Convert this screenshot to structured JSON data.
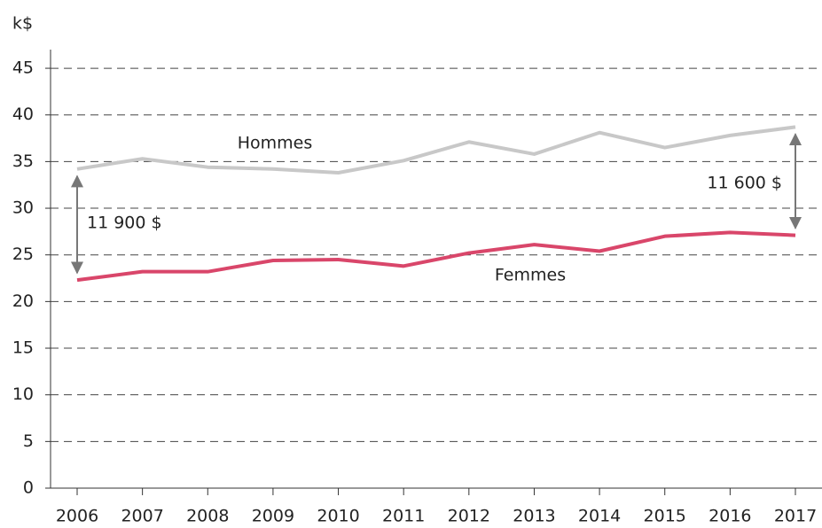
{
  "chart_data": {
    "type": "line",
    "y_label": "k$",
    "categories": [
      "2006",
      "2007",
      "2008",
      "2009",
      "2010",
      "2011",
      "2012",
      "2013",
      "2014",
      "2015",
      "2016",
      "2017"
    ],
    "series": [
      {
        "name": "Hommes",
        "color": "#c8c8c8",
        "values": [
          34.2,
          35.3,
          34.4,
          34.2,
          33.8,
          35.1,
          37.1,
          35.8,
          38.1,
          36.5,
          37.8,
          38.7
        ]
      },
      {
        "name": "Femmes",
        "color": "#d9466a",
        "values": [
          22.3,
          23.2,
          23.2,
          24.4,
          24.5,
          23.8,
          25.2,
          26.1,
          25.4,
          27.0,
          27.4,
          27.1
        ]
      }
    ],
    "annotations": [
      "11 900 $",
      "11 600 $"
    ],
    "ylim": [
      0,
      47
    ],
    "yticks": [
      0,
      5,
      10,
      15,
      20,
      25,
      30,
      35,
      40,
      45
    ],
    "grid": true
  }
}
